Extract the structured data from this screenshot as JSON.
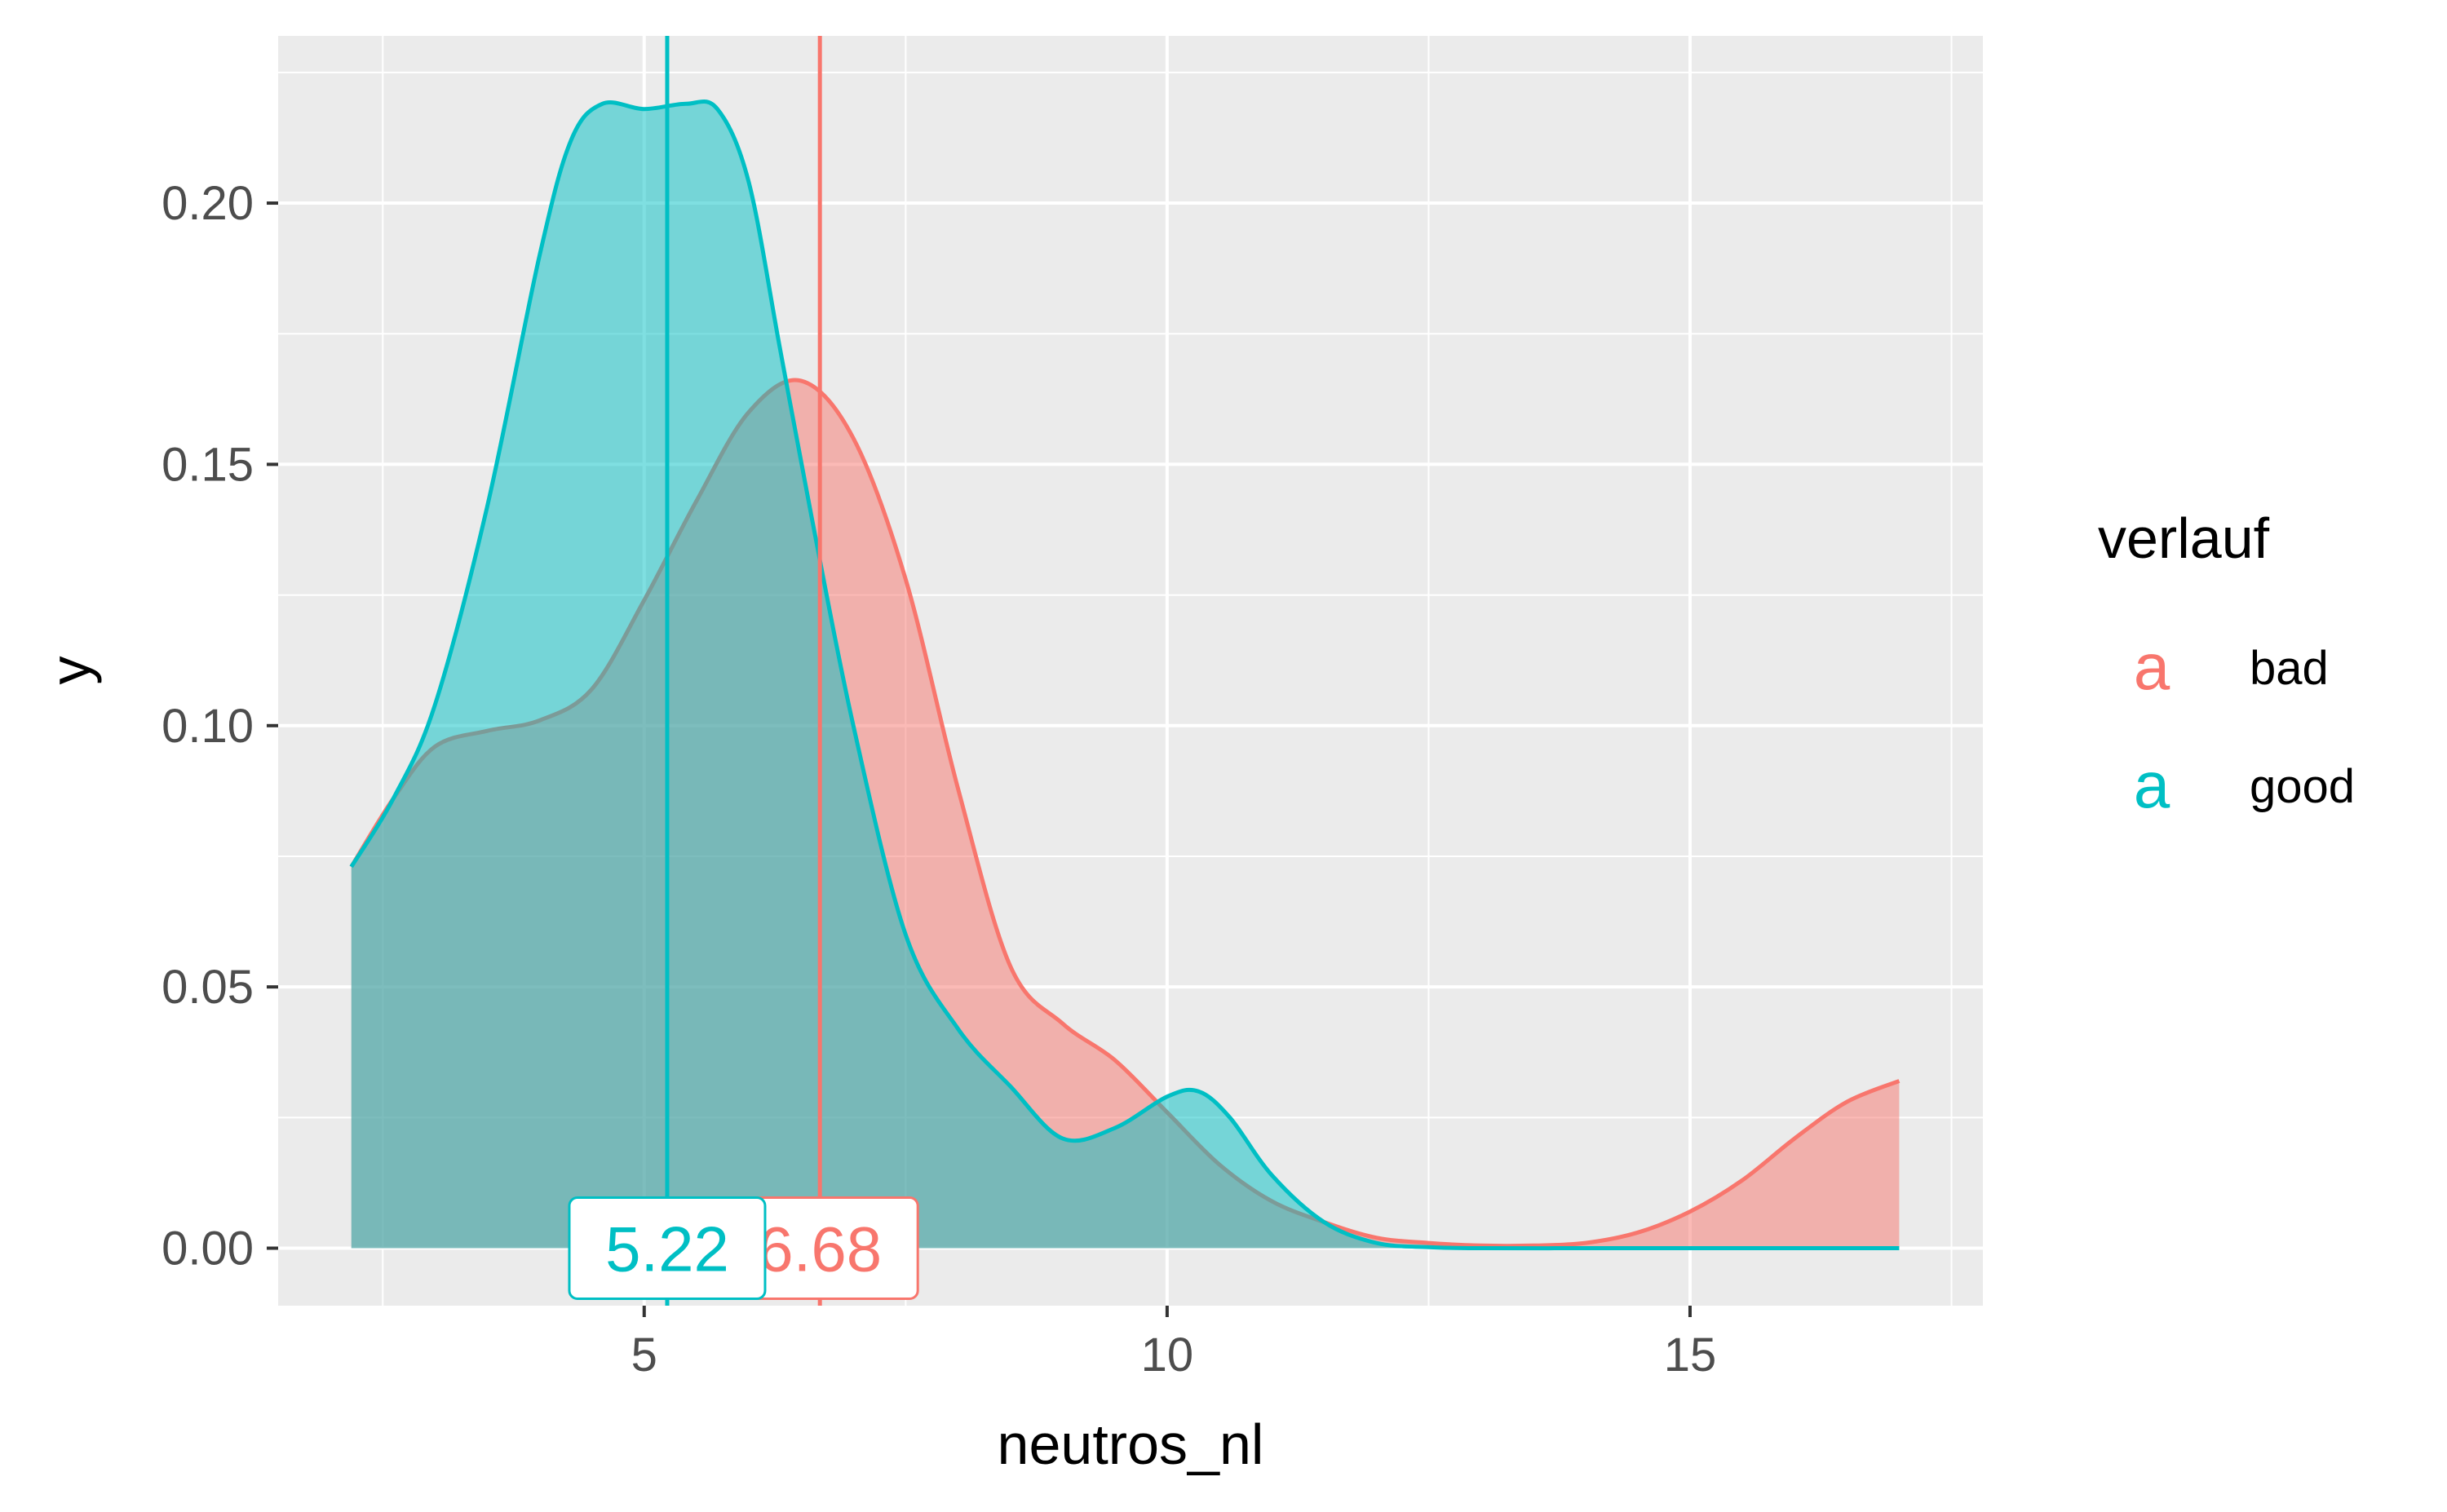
{
  "chart_data": {
    "type": "area",
    "title": "",
    "xlabel": "neutros_nl",
    "ylabel": "y",
    "xlim": [
      1.5,
      17.8
    ],
    "ylim": [
      -0.011,
      0.232
    ],
    "x_ticks": [
      5,
      10,
      15
    ],
    "x_tick_labels": [
      "5",
      "10",
      "15"
    ],
    "y_ticks": [
      0,
      0.05,
      0.1,
      0.15,
      0.2
    ],
    "y_tick_labels": [
      "0.00",
      "0.05",
      "0.10",
      "0.15",
      "0.20"
    ],
    "grid": true,
    "legend": {
      "title": "verlauf",
      "position": "right",
      "key_glyph": "a",
      "entries": [
        "bad",
        "good"
      ]
    },
    "series": [
      {
        "name": "bad",
        "color": "#F8766D",
        "fill": "#F8766D",
        "mean": 6.68,
        "mean_label": "6.68",
        "x": [
          2.2,
          2.6,
          3.0,
          3.5,
          4.0,
          4.5,
          5.0,
          5.5,
          6.0,
          6.5,
          7.0,
          7.5,
          8.0,
          8.5,
          9.0,
          9.5,
          10.0,
          10.5,
          11.0,
          11.5,
          12.0,
          12.5,
          13.0,
          13.5,
          14.0,
          14.5,
          15.0,
          15.5,
          16.0,
          16.5,
          17.0
        ],
        "y": [
          0.073,
          0.086,
          0.096,
          0.099,
          0.101,
          0.107,
          0.124,
          0.143,
          0.16,
          0.166,
          0.155,
          0.128,
          0.088,
          0.054,
          0.043,
          0.036,
          0.026,
          0.016,
          0.009,
          0.005,
          0.002,
          0.001,
          0.0005,
          0.0005,
          0.001,
          0.003,
          0.007,
          0.013,
          0.021,
          0.028,
          0.032
        ]
      },
      {
        "name": "good",
        "color": "#00BFC4",
        "fill": "#00BFC4",
        "mean": 5.22,
        "mean_label": "5.22",
        "x": [
          2.2,
          2.6,
          3.0,
          3.5,
          4.0,
          4.3,
          4.6,
          5.0,
          5.4,
          5.7,
          6.0,
          6.3,
          6.6,
          7.0,
          7.5,
          8.0,
          8.5,
          9.0,
          9.5,
          10.0,
          10.3,
          10.6,
          11.0,
          11.5,
          12.0,
          12.5,
          13.0,
          14.0,
          15.0,
          16.0,
          17.0
        ],
        "y": [
          0.073,
          0.086,
          0.104,
          0.142,
          0.19,
          0.212,
          0.219,
          0.218,
          0.219,
          0.218,
          0.204,
          0.172,
          0.14,
          0.1,
          0.06,
          0.042,
          0.031,
          0.021,
          0.023,
          0.029,
          0.03,
          0.025,
          0.014,
          0.005,
          0.001,
          0.0002,
          0.0,
          0.0,
          0.0,
          0.0,
          0.0
        ]
      }
    ]
  }
}
